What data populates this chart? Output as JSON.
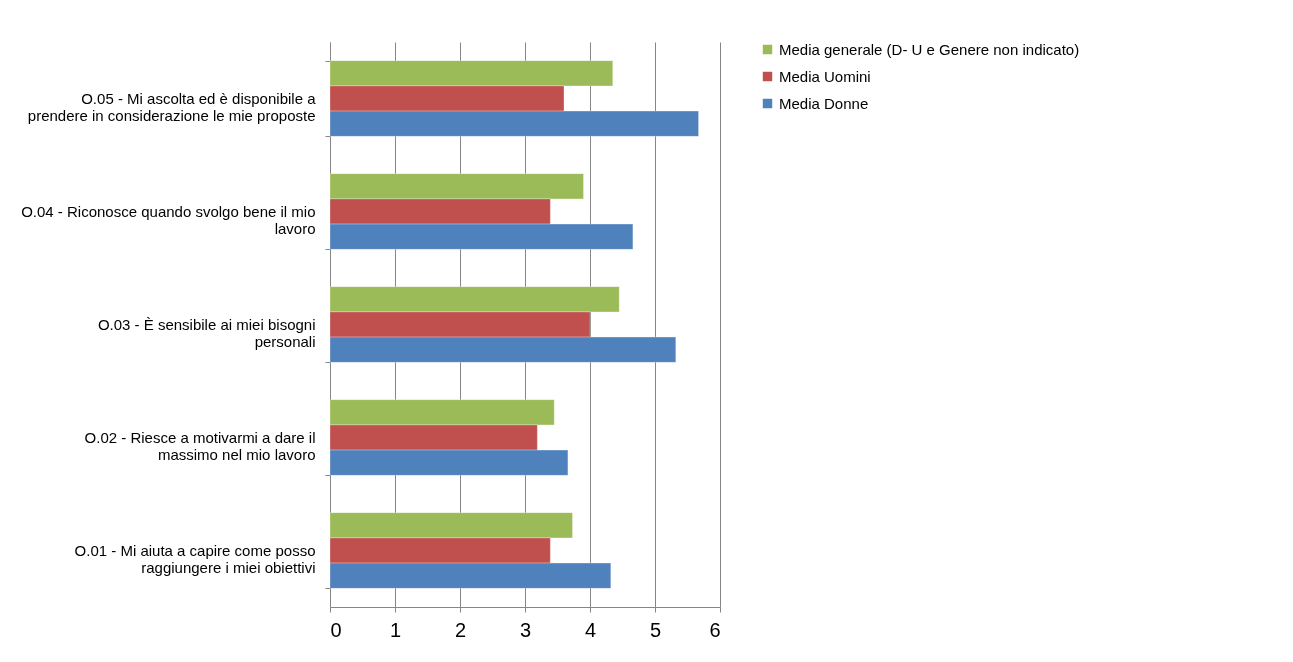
{
  "chart_data": {
    "type": "bar",
    "orientation": "horizontal",
    "categories": [
      "O.05 - Mi ascolta ed è disponibile a prendere in considerazione le mie proposte",
      "O.04 - Riconosce quando svolgo bene il mio lavoro",
      "O.03 - È sensibile ai miei bisogni personali",
      "O.02 - Riesce a motivarmi a dare il massimo nel mio lavoro",
      "O.01 - Mi aiuta a capire come posso raggiungere i miei obiettivi"
    ],
    "series": [
      {
        "name": "Media generale (D- U e Genere non indicato)",
        "color": "#9bbb59",
        "values": [
          4.35,
          3.9,
          4.45,
          3.45,
          3.73
        ]
      },
      {
        "name": "Media Uomini",
        "color": "#c0504d",
        "values": [
          3.6,
          3.39,
          4.0,
          3.19,
          3.39
        ]
      },
      {
        "name": "Media Donne",
        "color": "#4f81bd",
        "values": [
          5.67,
          4.66,
          5.32,
          3.66,
          4.32
        ]
      }
    ],
    "xlim": [
      0,
      6
    ],
    "xticks": [
      0,
      1,
      2,
      3,
      4,
      5,
      6
    ],
    "grid": "x",
    "legend": "right"
  }
}
